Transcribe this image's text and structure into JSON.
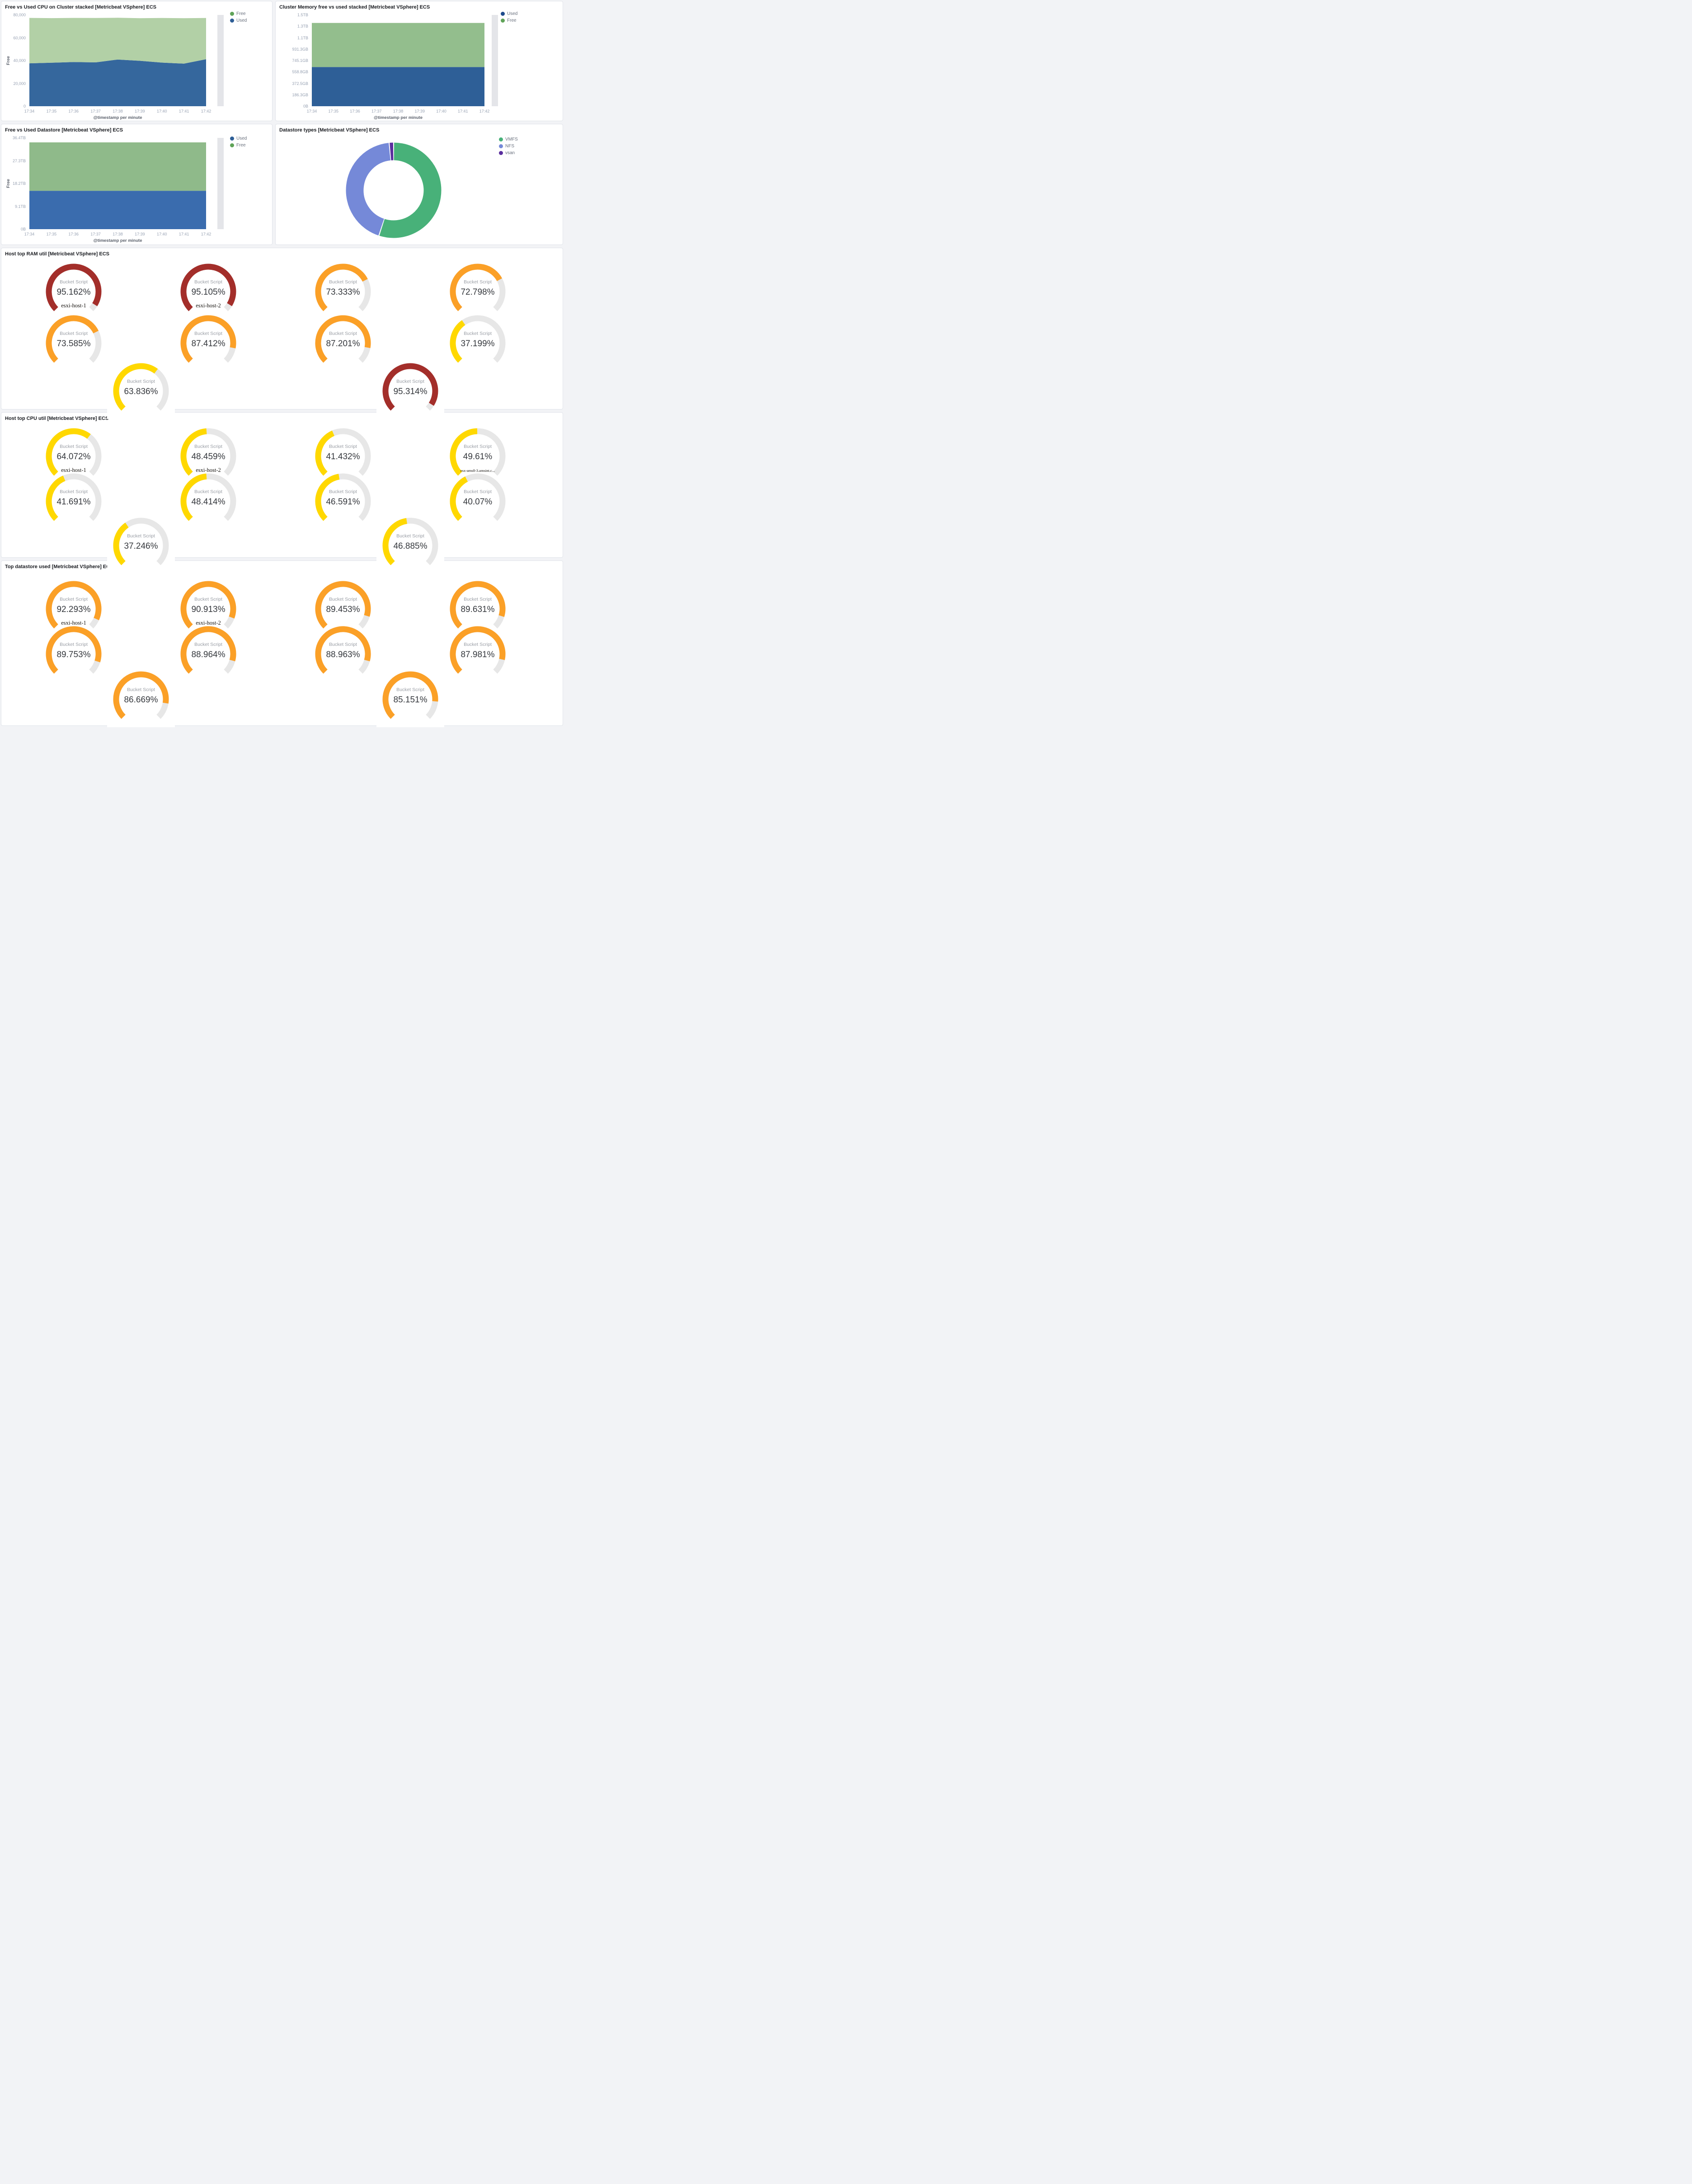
{
  "dashboard": {
    "background": "#f2f3f6"
  },
  "chart_data": [
    {
      "id": "cpu-cluster-area",
      "type": "area",
      "stacked": true,
      "title": "Free vs Used CPU on Cluster stacked [Metricbeat VSphere] ECS",
      "x": [
        "17:34",
        "17:35",
        "17:36",
        "17:37",
        "17:38",
        "17:39",
        "17:40",
        "17:41",
        "17:42"
      ],
      "xlabel": "@timestamp per minute",
      "ylabel": "Free",
      "ylim": [
        0,
        80000
      ],
      "yticks": [
        {
          "v": 0,
          "label": "0"
        },
        {
          "v": 20000,
          "label": "20,000"
        },
        {
          "v": 40000,
          "label": "40,000"
        },
        {
          "v": 60000,
          "label": "60,000"
        },
        {
          "v": 80000,
          "label": "80,000"
        }
      ],
      "series": [
        {
          "name": "Used",
          "color": "#35679D",
          "legend_color": "#2E5E96",
          "values": [
            37600,
            38100,
            38700,
            38400,
            40900,
            39800,
            38200,
            37300,
            41200
          ]
        },
        {
          "name": "Free",
          "color": "#B2D0A6",
          "legend_color": "#5FA358",
          "values": [
            39800,
            39100,
            38700,
            38900,
            36600,
            37300,
            39100,
            39800,
            36100
          ]
        }
      ],
      "legend_order": [
        "Free",
        "Used"
      ]
    },
    {
      "id": "memory-area",
      "type": "area",
      "stacked": true,
      "title": "Cluster Memory free vs used stacked [Metricbeat VSphere] ECS",
      "x": [
        "17:34",
        "17:35",
        "17:36",
        "17:37",
        "17:38",
        "17:39",
        "17:40",
        "17:41",
        "17:42"
      ],
      "xlabel": "@timestamp per minute",
      "ylabel": "",
      "units": "GB",
      "ylim": [
        0,
        1490.4
      ],
      "yticks": [
        {
          "v": 0,
          "label": "0B"
        },
        {
          "v": 186.3,
          "label": "186.3GB"
        },
        {
          "v": 372.5,
          "label": "372.5GB"
        },
        {
          "v": 558.8,
          "label": "558.8GB"
        },
        {
          "v": 745.1,
          "label": "745.1GB"
        },
        {
          "v": 931.3,
          "label": "931.3GB"
        },
        {
          "v": 1117.6,
          "label": "1.1TB"
        },
        {
          "v": 1303.9,
          "label": "1.3TB"
        },
        {
          "v": 1490.4,
          "label": "1.5TB"
        }
      ],
      "series": [
        {
          "name": "Used",
          "color": "#2E5F97",
          "legend_color": "#1E4B8C",
          "values": [
            640,
            640,
            640,
            640,
            640,
            640,
            640,
            640,
            640
          ]
        },
        {
          "name": "Free",
          "color": "#93BE8D",
          "legend_color": "#5FA358",
          "values": [
            720,
            720,
            720,
            720,
            720,
            720,
            720,
            720,
            720
          ]
        }
      ],
      "legend_order": [
        "Used",
        "Free"
      ]
    },
    {
      "id": "datastore-area",
      "type": "area",
      "stacked": true,
      "title": "Free vs Used Datastore [Metricbeat VSphere] ECS",
      "x": [
        "17:34",
        "17:35",
        "17:36",
        "17:37",
        "17:38",
        "17:39",
        "17:40",
        "17:41",
        "17:42"
      ],
      "xlabel": "@timestamp per minute",
      "ylabel": "Free",
      "units": "TB",
      "ylim": [
        0,
        36.4
      ],
      "yticks": [
        {
          "v": 0,
          "label": "0B"
        },
        {
          "v": 9.1,
          "label": "9.1TB"
        },
        {
          "v": 18.2,
          "label": "18.2TB"
        },
        {
          "v": 27.3,
          "label": "27.3TB"
        },
        {
          "v": 36.4,
          "label": "36.4TB"
        }
      ],
      "series": [
        {
          "name": "Used",
          "color": "#3A6CAE",
          "legend_color": "#2E5E96",
          "values": [
            15.3,
            15.3,
            15.3,
            15.3,
            15.3,
            15.3,
            15.3,
            15.3,
            15.3
          ]
        },
        {
          "name": "Free",
          "color": "#8FBA8A",
          "legend_color": "#5FA358",
          "values": [
            19.3,
            19.3,
            19.3,
            19.3,
            19.3,
            19.3,
            19.3,
            19.3,
            19.3
          ]
        }
      ],
      "legend_order": [
        "Used",
        "Free"
      ]
    },
    {
      "id": "datastore-types-pie",
      "type": "pie",
      "title": "Datastore types [Metricbeat VSphere] ECS",
      "slices": [
        {
          "label": "VMFS",
          "value": 55,
          "color": "#48B179"
        },
        {
          "label": "NFS",
          "value": 43.5,
          "color": "#7589D8"
        },
        {
          "label": "vsan",
          "value": 1.5,
          "color": "#5A2E9E"
        }
      ]
    },
    {
      "id": "ram-gauges",
      "type": "gauge-grid",
      "title": "Host top RAM util [Metricbeat VSphere] ECS",
      "inner_label": "Bucket Script",
      "gauges": [
        {
          "display": "95.162%",
          "value": 95.162,
          "sub": "esxi-host-1",
          "color": "#A32E2A",
          "row": 0,
          "col": 0
        },
        {
          "display": "95.105%",
          "value": 95.105,
          "sub": "esxi-host-2",
          "color": "#A32E2A",
          "row": 0,
          "col": 1
        },
        {
          "display": "73.333%",
          "value": 73.333,
          "color": "#FBA027",
          "row": 0,
          "col": 2
        },
        {
          "display": "72.798%",
          "value": 72.798,
          "color": "#FBA027",
          "row": 0,
          "col": 3
        },
        {
          "display": "73.585%",
          "value": 73.585,
          "color": "#FBA027",
          "row": 1,
          "col": 0
        },
        {
          "display": "87.412%",
          "value": 87.412,
          "color": "#FBA027",
          "row": 1,
          "col": 1
        },
        {
          "display": "87.201%",
          "value": 87.201,
          "color": "#FBA027",
          "row": 1,
          "col": 2
        },
        {
          "display": "37.199%",
          "value": 37.199,
          "color": "#FFD800",
          "row": 1,
          "col": 3
        },
        {
          "display": "63.836%",
          "value": 63.836,
          "color": "#FFD800",
          "row": 2,
          "col": 0.5
        },
        {
          "display": "95.314%",
          "value": 95.314,
          "color": "#A32E2A",
          "row": 2,
          "col": 2.5
        }
      ]
    },
    {
      "id": "cpu-gauges",
      "type": "gauge-grid",
      "title": "Host top CPU util [Metricbeat VSphere] ECS",
      "inner_label": "Bucket Script",
      "gauges": [
        {
          "display": "64.072%",
          "value": 64.072,
          "sub": "esxi-host-1",
          "color": "#FFD800",
          "row": 0,
          "col": 0
        },
        {
          "display": "48.459%",
          "value": 48.459,
          "sub": "esxi-host-2",
          "color": "#FFD800",
          "row": 0,
          "col": 1
        },
        {
          "display": "41.432%",
          "value": 41.432,
          "color": "#FFD800",
          "row": 0,
          "col": 2
        },
        {
          "display": "49.61%",
          "value": 49.61,
          "sub": "esx-ams8-3.amsint.c...",
          "color": "#FFD800",
          "row": 0,
          "col": 3
        },
        {
          "display": "41.691%",
          "value": 41.691,
          "color": "#FFD800",
          "row": 1,
          "col": 0
        },
        {
          "display": "48.414%",
          "value": 48.414,
          "color": "#FFD800",
          "row": 1,
          "col": 1
        },
        {
          "display": "46.591%",
          "value": 46.591,
          "color": "#FFD800",
          "row": 1,
          "col": 2
        },
        {
          "display": "40.07%",
          "value": 40.07,
          "color": "#FFD800",
          "row": 1,
          "col": 3
        },
        {
          "display": "37.246%",
          "value": 37.246,
          "color": "#FFD800",
          "row": 2,
          "col": 0.5
        },
        {
          "display": "46.885%",
          "value": 46.885,
          "color": "#FFD800",
          "row": 2,
          "col": 2.5
        }
      ]
    },
    {
      "id": "ds-gauges",
      "type": "gauge-grid",
      "title": "Top datastore used [Metricbeat VSphere] ECS",
      "inner_label": "Bucket Script",
      "gauges": [
        {
          "display": "92.293%",
          "value": 92.293,
          "sub": "esxi-host-1",
          "color": "#FBA027",
          "row": 0,
          "col": 0
        },
        {
          "display": "90.913%",
          "value": 90.913,
          "sub": "esxi-host-2",
          "color": "#FBA027",
          "row": 0,
          "col": 1
        },
        {
          "display": "89.453%",
          "value": 89.453,
          "color": "#FBA027",
          "row": 0,
          "col": 2
        },
        {
          "display": "89.631%",
          "value": 89.631,
          "color": "#FBA027",
          "row": 0,
          "col": 3
        },
        {
          "display": "89.753%",
          "value": 89.753,
          "color": "#FBA027",
          "row": 1,
          "col": 0
        },
        {
          "display": "88.964%",
          "value": 88.964,
          "color": "#FBA027",
          "row": 1,
          "col": 1
        },
        {
          "display": "88.963%",
          "value": 88.963,
          "color": "#FBA027",
          "row": 1,
          "col": 2
        },
        {
          "display": "87.981%",
          "value": 87.981,
          "color": "#FBA027",
          "row": 1,
          "col": 3
        },
        {
          "display": "86.669%",
          "value": 86.669,
          "color": "#FBA027",
          "row": 2,
          "col": 0.5
        },
        {
          "display": "85.151%",
          "value": 85.151,
          "color": "#FBA027",
          "row": 2,
          "col": 2.5
        }
      ]
    }
  ]
}
